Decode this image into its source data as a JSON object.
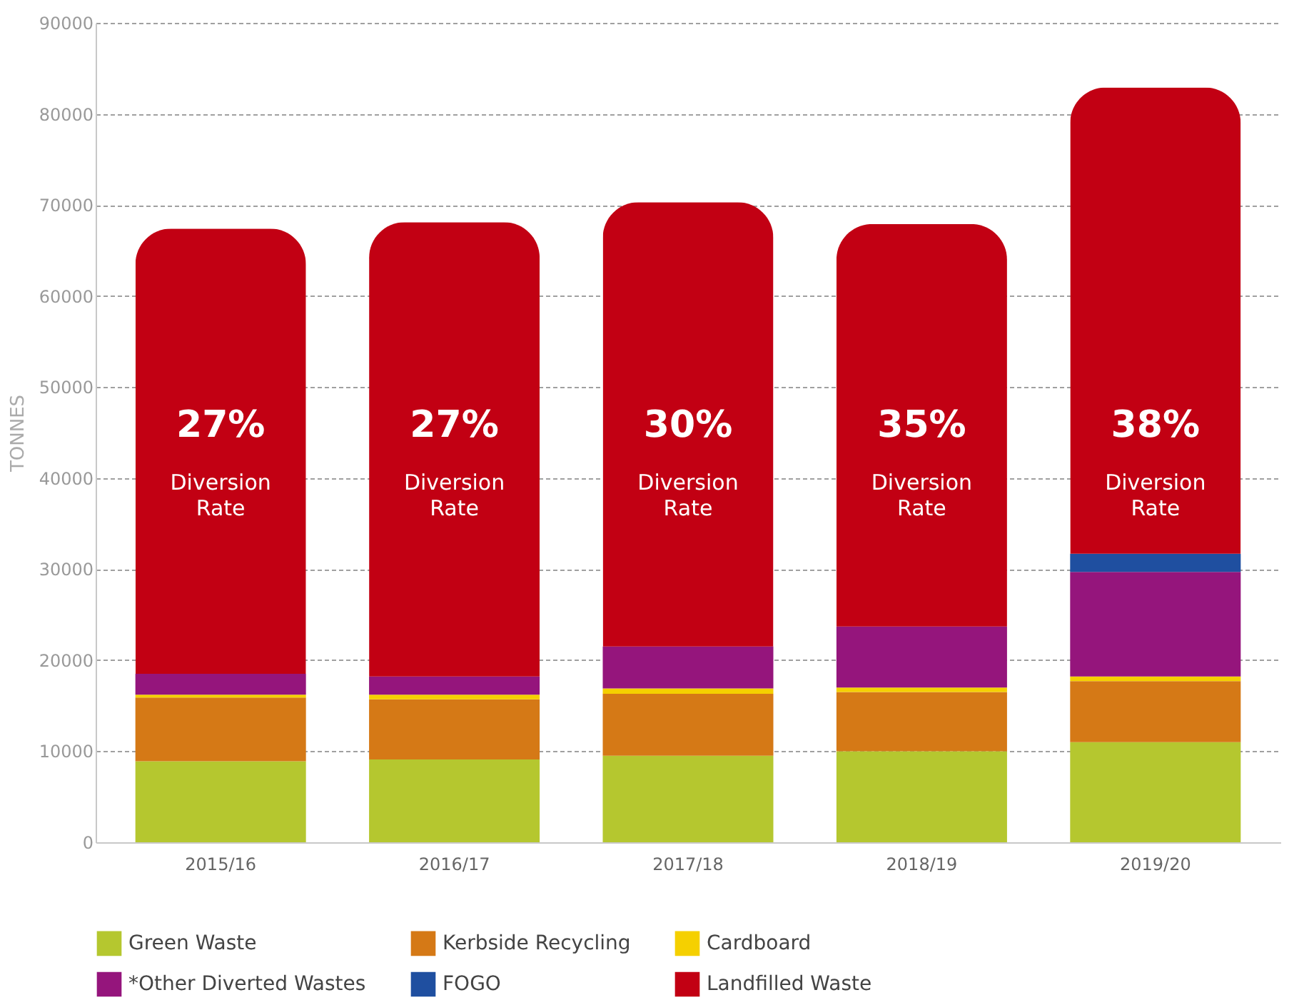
{
  "chart_data": {
    "type": "bar",
    "stacked": true,
    "ylabel": "TONNES",
    "categories": [
      "2015/16",
      "2016/17",
      "2017/18",
      "2018/19",
      "2019/20"
    ],
    "series": [
      {
        "name": "Green Waste",
        "color": "#b5c72f",
        "values": [
          8900,
          9100,
          9500,
          10000,
          11000
        ]
      },
      {
        "name": "Kerbside Recycling",
        "color": "#d57916",
        "values": [
          7000,
          6600,
          6800,
          6500,
          6700
        ]
      },
      {
        "name": "Cardboard",
        "color": "#f5d000",
        "values": [
          300,
          500,
          600,
          500,
          500
        ]
      },
      {
        "name": "*Other Diverted Wastes",
        "color": "#95157c",
        "values": [
          2300,
          2000,
          4600,
          6700,
          11500
        ]
      },
      {
        "name": "FOGO",
        "color": "#1f4fa0",
        "values": [
          0,
          0,
          0,
          0,
          2000
        ]
      },
      {
        "name": "Landfilled Waste",
        "color": "#c20013",
        "values": [
          48900,
          49900,
          48800,
          44200,
          51200
        ]
      }
    ],
    "ylim": [
      0,
      90000
    ],
    "yticks": [
      0,
      10000,
      20000,
      30000,
      40000,
      50000,
      60000,
      70000,
      80000,
      90000
    ],
    "grid": "y",
    "legend": "bottom",
    "annotations": [
      "27%",
      "Diversion Rate",
      "27%",
      "Diversion Rate",
      "30%",
      "Diversion Rate",
      "35%",
      "Diversion Rate",
      "38%",
      "Diversion Rate"
    ]
  }
}
